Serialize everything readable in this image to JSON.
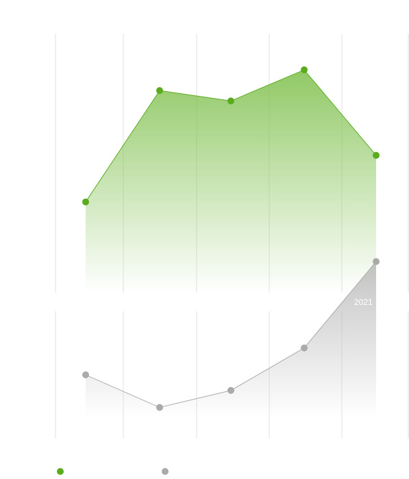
{
  "chart_data": [
    {
      "type": "area",
      "title": "",
      "xlabel": "",
      "ylabel": "",
      "x": [
        "",
        "",
        "",
        "",
        ""
      ],
      "series": [
        {
          "name": "",
          "color": "#5aab1e",
          "values": [
            3.5,
            7.8,
            7.4,
            8.6,
            5.3
          ]
        }
      ],
      "ylim": [
        0,
        10
      ],
      "grid": {
        "vertical": true,
        "horizontal": false
      },
      "legend": "bottom-left"
    },
    {
      "type": "area",
      "title": "",
      "xlabel": "",
      "ylabel": "",
      "x": [
        "",
        "",
        "",
        "",
        ""
      ],
      "series": [
        {
          "name": "",
          "color": "#aaaaaa",
          "values": [
            4.5,
            2.2,
            3.4,
            6.4,
            12.5
          ]
        }
      ],
      "ylim": [
        0,
        9
      ],
      "grid": {
        "vertical": true,
        "horizontal": false
      },
      "legend": "bottom-left"
    }
  ],
  "band_label": "2021"
}
